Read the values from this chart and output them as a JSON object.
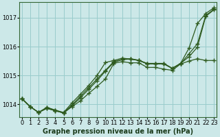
{
  "xlabel": "Graphe pression niveau de la mer (hPa)",
  "bg_color": "#cce8e8",
  "grid_color": "#99cccc",
  "line_color": "#2d5a1e",
  "x_ticks": [
    0,
    1,
    2,
    3,
    4,
    5,
    6,
    7,
    8,
    9,
    10,
    11,
    12,
    13,
    14,
    15,
    16,
    17,
    18,
    19,
    20,
    21,
    22,
    23
  ],
  "y_ticks": [
    1014,
    1015,
    1016,
    1017
  ],
  "ylim": [
    1013.55,
    1017.55
  ],
  "xlim": [
    -0.3,
    23.3
  ],
  "series": [
    [
      1014.2,
      1013.92,
      1013.72,
      1013.9,
      1013.8,
      1013.72,
      1014.05,
      1014.35,
      1014.65,
      1015.0,
      1015.45,
      1015.52,
      1015.6,
      1015.57,
      1015.52,
      1015.4,
      1015.4,
      1015.4,
      1015.25,
      1015.42,
      1015.95,
      1016.8,
      1017.15,
      1017.35
    ],
    [
      1014.2,
      1013.92,
      1013.72,
      1013.86,
      1013.78,
      1013.7,
      1013.92,
      1014.12,
      1014.38,
      1014.62,
      1014.88,
      1015.42,
      1015.48,
      1015.44,
      1015.44,
      1015.28,
      1015.28,
      1015.22,
      1015.18,
      1015.4,
      1015.5,
      1015.58,
      1015.52,
      1015.52
    ],
    [
      1014.2,
      1013.92,
      1013.72,
      1013.86,
      1013.78,
      1013.7,
      1013.95,
      1014.22,
      1014.52,
      1014.82,
      1015.15,
      1015.45,
      1015.55,
      1015.57,
      1015.52,
      1015.42,
      1015.42,
      1015.42,
      1015.25,
      1015.42,
      1015.65,
      1015.98,
      1017.05,
      1017.28
    ],
    [
      1014.2,
      1013.92,
      1013.72,
      1013.88,
      1013.8,
      1013.7,
      1013.98,
      1014.28,
      1014.58,
      1014.88,
      1015.18,
      1015.48,
      1015.56,
      1015.58,
      1015.53,
      1015.41,
      1015.41,
      1015.4,
      1015.24,
      1015.41,
      1015.75,
      1016.1,
      1017.08,
      1017.3
    ]
  ],
  "marker": "+",
  "markersize": 4,
  "markeredgewidth": 1.0,
  "linewidth": 0.9,
  "tick_fontsize": 6,
  "label_fontsize": 7,
  "xlabel_color": "#1a3a1a",
  "spine_color": "#336633"
}
